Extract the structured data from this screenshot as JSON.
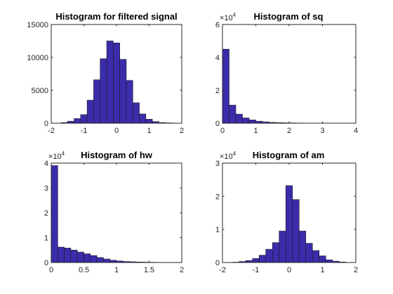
{
  "figure": {
    "background": "#ffffff",
    "bar_color": "#3B2CAB"
  },
  "chart_data": [
    {
      "type": "bar",
      "title": "Histogram for filtered signal",
      "xlim": [
        -2,
        2
      ],
      "ylim": [
        0,
        15000
      ],
      "xticks": [
        -2,
        -1,
        0,
        1,
        2
      ],
      "yticks": [
        0,
        5000,
        10000,
        15000
      ],
      "y_exponent": "",
      "bin_edges": [
        -1.7,
        -1.5,
        -1.3,
        -1.1,
        -0.9,
        -0.7,
        -0.5,
        -0.3,
        -0.1,
        0.1,
        0.3,
        0.5,
        0.7,
        0.9,
        1.1,
        1.3,
        1.5,
        1.7
      ],
      "values": [
        100,
        300,
        700,
        1300,
        3500,
        6600,
        9800,
        12500,
        12200,
        9700,
        6500,
        3100,
        1400,
        600,
        250,
        100,
        50
      ]
    },
    {
      "type": "bar",
      "title": "Histogram of sq",
      "xlim": [
        0,
        4
      ],
      "ylim": [
        0,
        6
      ],
      "xticks": [
        0,
        1,
        2,
        3,
        4
      ],
      "yticks": [
        0,
        2,
        4,
        6
      ],
      "y_exponent": "4",
      "bin_edges": [
        0,
        0.2,
        0.4,
        0.6,
        0.8,
        1.0,
        1.2,
        1.4,
        1.6,
        1.8,
        2.0,
        2.2,
        2.4,
        2.6,
        2.8,
        3.0,
        3.2
      ],
      "values": [
        4.5,
        1.1,
        0.55,
        0.32,
        0.2,
        0.12,
        0.08,
        0.05,
        0.035,
        0.025,
        0.018,
        0.012,
        0.008,
        0.005,
        0.003,
        0.002
      ]
    },
    {
      "type": "bar",
      "title": "Histogram of hw",
      "xlim": [
        0,
        2
      ],
      "ylim": [
        0,
        4
      ],
      "xticks": [
        0,
        0.5,
        1,
        1.5,
        2
      ],
      "yticks": [
        0,
        1,
        2,
        3,
        4
      ],
      "y_exponent": "4",
      "bin_edges": [
        0,
        0.1,
        0.2,
        0.3,
        0.4,
        0.5,
        0.6,
        0.7,
        0.8,
        0.9,
        1.0,
        1.1,
        1.2,
        1.3,
        1.4,
        1.5,
        1.6,
        1.7,
        1.8
      ],
      "values": [
        3.9,
        0.62,
        0.58,
        0.5,
        0.42,
        0.35,
        0.28,
        0.2,
        0.14,
        0.09,
        0.06,
        0.04,
        0.03,
        0.02,
        0.015,
        0.01,
        0.007,
        0.005
      ]
    },
    {
      "type": "bar",
      "title": "Histogram of am",
      "xlim": [
        -2,
        2
      ],
      "ylim": [
        0,
        3
      ],
      "xticks": [
        -2,
        -1,
        0,
        1,
        2
      ],
      "yticks": [
        0,
        1,
        2,
        3
      ],
      "y_exponent": "4",
      "bin_edges": [
        -1.7,
        -1.5,
        -1.3,
        -1.1,
        -0.9,
        -0.7,
        -0.5,
        -0.3,
        -0.1,
        0.1,
        0.3,
        0.5,
        0.7,
        0.9,
        1.1,
        1.3,
        1.5,
        1.7
      ],
      "values": [
        0.01,
        0.03,
        0.06,
        0.12,
        0.22,
        0.4,
        0.6,
        0.95,
        2.32,
        1.9,
        0.95,
        0.58,
        0.36,
        0.2,
        0.08,
        0.04,
        0.015
      ]
    }
  ]
}
